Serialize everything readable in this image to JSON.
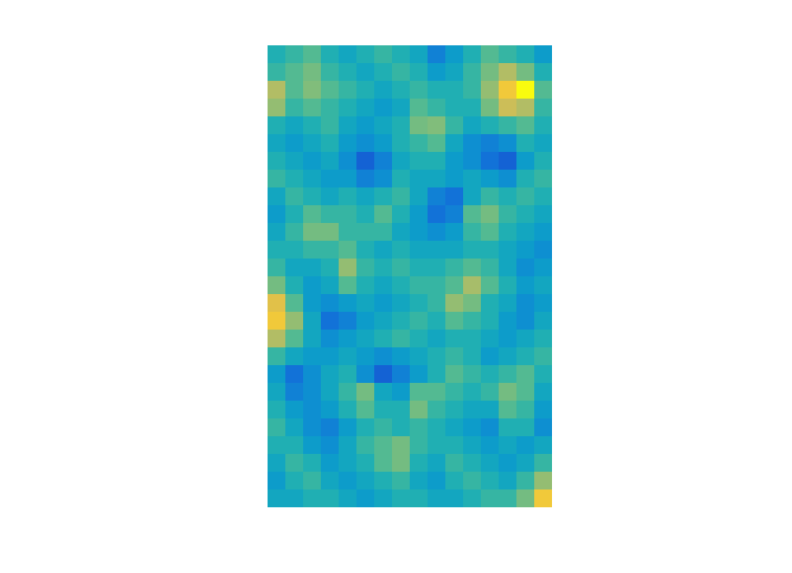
{
  "chart_data": {
    "type": "heatmap",
    "tick_labels": false,
    "clim": [
      0,
      1
    ],
    "cells": [
      [
        0.45,
        0.5,
        0.55,
        0.45,
        0.4,
        0.45,
        0.5,
        0.45,
        0.4,
        0.25,
        0.35,
        0.45,
        0.55,
        0.5,
        0.45,
        0.35
      ],
      [
        0.5,
        0.55,
        0.6,
        0.5,
        0.45,
        0.4,
        0.45,
        0.5,
        0.45,
        0.35,
        0.4,
        0.5,
        0.6,
        0.7,
        0.6,
        0.45
      ],
      [
        0.7,
        0.55,
        0.62,
        0.55,
        0.5,
        0.45,
        0.4,
        0.45,
        0.5,
        0.45,
        0.45,
        0.5,
        0.65,
        0.85,
        1.0,
        0.55
      ],
      [
        0.65,
        0.5,
        0.55,
        0.5,
        0.45,
        0.4,
        0.35,
        0.4,
        0.55,
        0.5,
        0.45,
        0.45,
        0.6,
        0.75,
        0.7,
        0.5
      ],
      [
        0.45,
        0.4,
        0.45,
        0.5,
        0.4,
        0.35,
        0.4,
        0.45,
        0.6,
        0.62,
        0.5,
        0.4,
        0.45,
        0.5,
        0.55,
        0.45
      ],
      [
        0.4,
        0.35,
        0.4,
        0.45,
        0.35,
        0.3,
        0.35,
        0.45,
        0.5,
        0.55,
        0.4,
        0.3,
        0.25,
        0.3,
        0.45,
        0.4
      ],
      [
        0.45,
        0.4,
        0.35,
        0.4,
        0.3,
        0.15,
        0.25,
        0.4,
        0.45,
        0.45,
        0.35,
        0.3,
        0.2,
        0.15,
        0.35,
        0.45
      ],
      [
        0.5,
        0.45,
        0.4,
        0.35,
        0.35,
        0.25,
        0.3,
        0.45,
        0.4,
        0.4,
        0.35,
        0.4,
        0.35,
        0.3,
        0.45,
        0.5
      ],
      [
        0.4,
        0.5,
        0.45,
        0.4,
        0.45,
        0.4,
        0.45,
        0.5,
        0.4,
        0.25,
        0.2,
        0.4,
        0.5,
        0.45,
        0.5,
        0.45
      ],
      [
        0.35,
        0.45,
        0.55,
        0.5,
        0.5,
        0.45,
        0.55,
        0.45,
        0.35,
        0.2,
        0.25,
        0.55,
        0.6,
        0.5,
        0.45,
        0.4
      ],
      [
        0.4,
        0.5,
        0.6,
        0.6,
        0.5,
        0.5,
        0.5,
        0.4,
        0.35,
        0.3,
        0.35,
        0.5,
        0.55,
        0.45,
        0.4,
        0.35
      ],
      [
        0.45,
        0.45,
        0.5,
        0.5,
        0.55,
        0.45,
        0.4,
        0.45,
        0.4,
        0.4,
        0.4,
        0.45,
        0.45,
        0.4,
        0.35,
        0.3
      ],
      [
        0.5,
        0.4,
        0.4,
        0.45,
        0.65,
        0.5,
        0.45,
        0.5,
        0.45,
        0.45,
        0.5,
        0.55,
        0.5,
        0.4,
        0.3,
        0.35
      ],
      [
        0.6,
        0.45,
        0.35,
        0.4,
        0.55,
        0.45,
        0.4,
        0.45,
        0.5,
        0.5,
        0.55,
        0.68,
        0.55,
        0.45,
        0.35,
        0.4
      ],
      [
        0.8,
        0.55,
        0.35,
        0.3,
        0.35,
        0.4,
        0.35,
        0.4,
        0.45,
        0.5,
        0.65,
        0.6,
        0.45,
        0.4,
        0.3,
        0.35
      ],
      [
        0.85,
        0.65,
        0.4,
        0.2,
        0.25,
        0.35,
        0.4,
        0.45,
        0.5,
        0.45,
        0.55,
        0.5,
        0.45,
        0.35,
        0.3,
        0.4
      ],
      [
        0.7,
        0.55,
        0.4,
        0.3,
        0.35,
        0.4,
        0.45,
        0.5,
        0.45,
        0.4,
        0.45,
        0.45,
        0.4,
        0.35,
        0.4,
        0.45
      ],
      [
        0.5,
        0.4,
        0.35,
        0.35,
        0.4,
        0.35,
        0.3,
        0.35,
        0.4,
        0.45,
        0.5,
        0.45,
        0.35,
        0.4,
        0.45,
        0.5
      ],
      [
        0.35,
        0.2,
        0.3,
        0.4,
        0.45,
        0.3,
        0.15,
        0.25,
        0.35,
        0.45,
        0.55,
        0.5,
        0.45,
        0.5,
        0.55,
        0.45
      ],
      [
        0.4,
        0.25,
        0.3,
        0.4,
        0.5,
        0.6,
        0.4,
        0.35,
        0.55,
        0.55,
        0.5,
        0.45,
        0.5,
        0.6,
        0.55,
        0.4
      ],
      [
        0.45,
        0.35,
        0.3,
        0.35,
        0.45,
        0.55,
        0.45,
        0.45,
        0.6,
        0.5,
        0.45,
        0.4,
        0.4,
        0.55,
        0.5,
        0.35
      ],
      [
        0.5,
        0.4,
        0.3,
        0.25,
        0.35,
        0.45,
        0.5,
        0.45,
        0.5,
        0.45,
        0.4,
        0.35,
        0.3,
        0.45,
        0.45,
        0.3
      ],
      [
        0.45,
        0.45,
        0.35,
        0.3,
        0.4,
        0.5,
        0.55,
        0.6,
        0.5,
        0.45,
        0.45,
        0.4,
        0.35,
        0.4,
        0.35,
        0.4
      ],
      [
        0.4,
        0.5,
        0.45,
        0.35,
        0.4,
        0.45,
        0.55,
        0.6,
        0.45,
        0.4,
        0.5,
        0.45,
        0.4,
        0.35,
        0.4,
        0.5
      ],
      [
        0.35,
        0.45,
        0.5,
        0.4,
        0.35,
        0.4,
        0.45,
        0.5,
        0.4,
        0.35,
        0.45,
        0.5,
        0.45,
        0.4,
        0.5,
        0.65
      ],
      [
        0.4,
        0.4,
        0.45,
        0.45,
        0.4,
        0.35,
        0.4,
        0.45,
        0.45,
        0.4,
        0.4,
        0.45,
        0.5,
        0.5,
        0.6,
        0.85
      ]
    ]
  }
}
